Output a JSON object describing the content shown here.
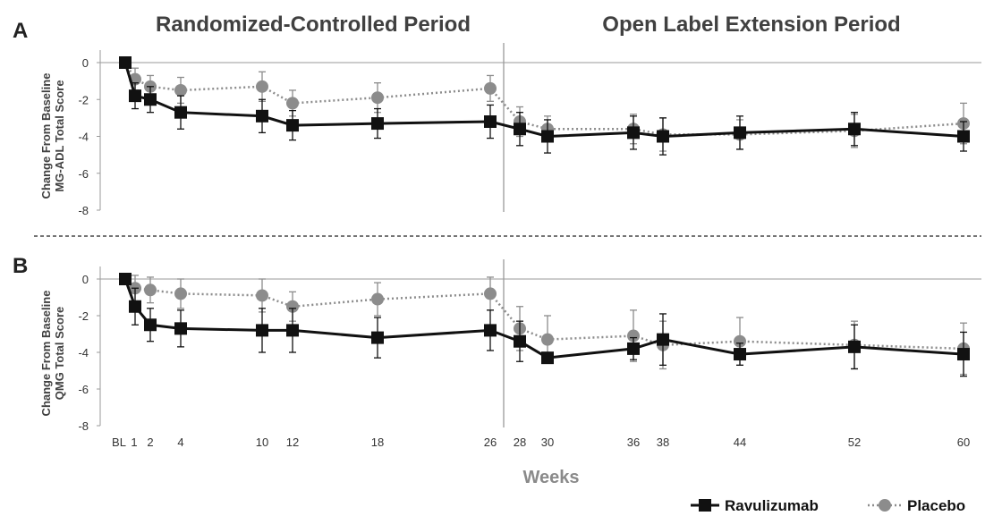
{
  "colors": {
    "ravulizumab": "#111111",
    "placebo": "#8c8c8c",
    "axis": "#9a9a9a",
    "divider": "#222222"
  },
  "period_titles": {
    "rcp": "Randomized-Controlled Period",
    "ole": "Open Label Extension Period"
  },
  "xlabel": "Weeks",
  "legend": {
    "ravulizumab": "Ravulizumab",
    "placebo": "Placebo"
  },
  "x_tick_labels": [
    "BL",
    "1",
    "2",
    "4",
    "10",
    "12",
    "18",
    "26",
    "28",
    "30",
    "36",
    "38",
    "44",
    "52",
    "60"
  ],
  "chart_data": [
    {
      "type": "line",
      "panel": "A",
      "ylabel_line1": "Change From Baseline",
      "ylabel_line2": "MG-ADL Total Score",
      "ylim": [
        -8,
        0
      ],
      "yticks": [
        0,
        -2,
        -4,
        -6,
        -8
      ],
      "series": [
        {
          "name": "Ravulizumab",
          "x": [
            0,
            1,
            2,
            4,
            10,
            12,
            18,
            26,
            28,
            30,
            36,
            38,
            44,
            52,
            60
          ],
          "values": [
            0,
            -1.8,
            -2.0,
            -2.7,
            -2.9,
            -3.4,
            -3.3,
            -3.2,
            -3.6,
            -4.0,
            -3.8,
            -4.0,
            -3.8,
            -3.6,
            -4.0
          ],
          "err": [
            0,
            0.7,
            0.7,
            0.9,
            0.9,
            0.8,
            0.8,
            0.9,
            0.9,
            0.9,
            0.9,
            1.0,
            0.9,
            0.9,
            0.8
          ]
        },
        {
          "name": "Placebo",
          "x": [
            0,
            1,
            2,
            4,
            10,
            12,
            18,
            26,
            28,
            30,
            36,
            38,
            44,
            52,
            60
          ],
          "values": [
            0,
            -0.9,
            -1.3,
            -1.5,
            -1.3,
            -2.2,
            -1.9,
            -1.4,
            -3.2,
            -3.6,
            -3.6,
            -3.9,
            -3.9,
            -3.7,
            -3.3
          ],
          "err": [
            0,
            0.6,
            0.6,
            0.7,
            0.8,
            0.7,
            0.8,
            0.7,
            0.8,
            0.7,
            0.8,
            0.9,
            0.8,
            0.9,
            1.1
          ]
        }
      ]
    },
    {
      "type": "line",
      "panel": "B",
      "ylabel_line1": "Change From Baseline",
      "ylabel_line2": "QMG Total Score",
      "ylim": [
        -8,
        0
      ],
      "yticks": [
        0,
        -2,
        -4,
        -6,
        -8
      ],
      "series": [
        {
          "name": "Ravulizumab",
          "x": [
            0,
            1,
            2,
            4,
            10,
            12,
            18,
            26,
            28,
            30,
            36,
            38,
            44,
            52,
            60
          ],
          "values": [
            0,
            -1.5,
            -2.5,
            -2.7,
            -2.8,
            -2.8,
            -3.2,
            -2.8,
            -3.4,
            -4.3,
            -3.8,
            -3.3,
            -4.1,
            -3.7,
            -4.1
          ],
          "err": [
            0,
            1.0,
            0.9,
            1.0,
            1.2,
            1.2,
            1.1,
            1.1,
            1.1,
            0.0,
            0.6,
            1.4,
            0.6,
            1.2,
            1.2
          ]
        },
        {
          "name": "Placebo",
          "x": [
            0,
            1,
            2,
            4,
            10,
            12,
            18,
            26,
            28,
            30,
            36,
            38,
            44,
            52,
            60
          ],
          "values": [
            0,
            -0.5,
            -0.6,
            -0.8,
            -0.9,
            -1.5,
            -1.1,
            -0.8,
            -2.7,
            -3.3,
            -3.1,
            -3.6,
            -3.4,
            -3.6,
            -3.8
          ],
          "err": [
            0,
            0.7,
            0.7,
            0.8,
            0.9,
            0.8,
            0.9,
            0.9,
            1.2,
            1.3,
            1.4,
            1.3,
            1.3,
            1.3,
            1.4
          ]
        }
      ]
    }
  ]
}
